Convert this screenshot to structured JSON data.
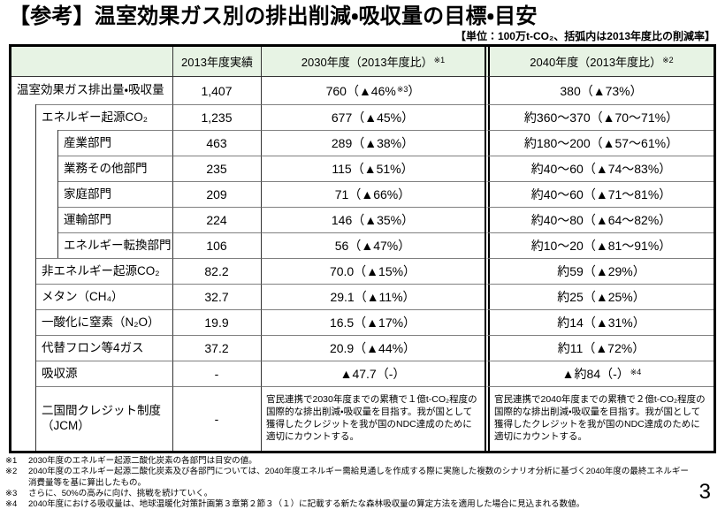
{
  "page": {
    "title": "【参考】温室効果ガス別の排出削減・吸収量の目標・目安",
    "unit_note": "【単位：100万t-CO₂、括弧内は2013年度比の削減率】",
    "page_number": "3"
  },
  "colors": {
    "header_bg": "#e7f3e4",
    "border": "#000000",
    "grid_h": "#808080",
    "grid_v": "#333333"
  },
  "table": {
    "headers": {
      "item": "",
      "fy2013": "2013年度実績",
      "fy2030": {
        "pre": "2030年度（2013年度比）",
        "sup": "※1"
      },
      "fy2040": {
        "pre": "2040年度（2013年度比）",
        "sup": "※2"
      }
    },
    "rows": [
      {
        "label": "温室効果ガス排出量・吸収量",
        "level": 0,
        "fy2013": {
          "pre": "1,407"
        },
        "fy2030": {
          "pre": "760（▲46%",
          "sup": "※3",
          "tail": "）"
        },
        "fy2040": {
          "pre": "380（▲73%）"
        }
      },
      {
        "label": "エネルギー起源CO₂",
        "level": 1,
        "fy2013": {
          "pre": "1,235"
        },
        "fy2030": {
          "pre": "677（▲45%）"
        },
        "fy2040": {
          "pre": "約360～370（▲70～71%）"
        }
      },
      {
        "label": "産業部門",
        "level": 2,
        "fy2013": {
          "pre": "463"
        },
        "fy2030": {
          "pre": "289（▲38%）"
        },
        "fy2040": {
          "pre": "約180～200（▲57～61%）"
        }
      },
      {
        "label": "業務その他部門",
        "level": 2,
        "fy2013": {
          "pre": "235"
        },
        "fy2030": {
          "pre": "115（▲51%）"
        },
        "fy2040": {
          "pre": "約40～60（▲74～83%）"
        }
      },
      {
        "label": "家庭部門",
        "level": 2,
        "fy2013": {
          "pre": "209"
        },
        "fy2030": {
          "pre": "71（▲66%）"
        },
        "fy2040": {
          "pre": "約40～60（▲71～81%）"
        }
      },
      {
        "label": "運輸部門",
        "level": 2,
        "fy2013": {
          "pre": "224"
        },
        "fy2030": {
          "pre": "146（▲35%）"
        },
        "fy2040": {
          "pre": "約40～80（▲64～82%）"
        }
      },
      {
        "label": "エネルギー転換部門",
        "level": 2,
        "fy2013": {
          "pre": "106"
        },
        "fy2030": {
          "pre": "56（▲47%）"
        },
        "fy2040": {
          "pre": "約10～20（▲81～91%）"
        }
      },
      {
        "label": "非エネルギー起源CO₂",
        "level": 1,
        "fy2013": {
          "pre": "82.2"
        },
        "fy2030": {
          "pre": "70.0（▲15%）"
        },
        "fy2040": {
          "pre": "約59（▲29%）"
        }
      },
      {
        "label": "メタン（CH₄）",
        "level": 1,
        "fy2013": {
          "pre": "32.7"
        },
        "fy2030": {
          "pre": "29.1（▲11%）"
        },
        "fy2040": {
          "pre": "約25（▲25%）"
        }
      },
      {
        "label": "一酸化に窒素（N₂O）",
        "level": 1,
        "fy2013": {
          "pre": "19.9"
        },
        "fy2030": {
          "pre": "16.5（▲17%）"
        },
        "fy2040": {
          "pre": "約14（▲31%）"
        }
      },
      {
        "label": "代替フロン等4ガス",
        "level": 1,
        "fy2013": {
          "pre": "37.2"
        },
        "fy2030": {
          "pre": "20.9（▲44%）"
        },
        "fy2040": {
          "pre": "約11（▲72%）"
        }
      },
      {
        "label": "吸収源",
        "level": 1,
        "fy2013": {
          "pre": "-"
        },
        "fy2030": {
          "pre": "▲47.7（-）"
        },
        "fy2040": {
          "pre": "▲約84（-）",
          "sup": "※4"
        }
      },
      {
        "label": "二国間クレジット制度\n（JCM）",
        "level": 1,
        "paragraph": true,
        "fy2013": {
          "pre": "-"
        },
        "fy2030": {
          "pre": "官民連携で2030年度までの累積で１億t-CO₂程度の国際的な排出削減・吸収量を目指す。我が国として獲得したクレジットを我が国のNDC達成のために適切にカウントする。"
        },
        "fy2040": {
          "pre": "官民連携で2040年度までの累積で２億t-CO₂程度の国際的な排出削減・吸収量を目指す。我が国として獲得したクレジットを我が国のNDC達成のために適切にカウントする。"
        }
      }
    ]
  },
  "footnotes": [
    {
      "mark": "※1",
      "text": "2030年度のエネルギー起源二酸化炭素の各部門は目安の値。"
    },
    {
      "mark": "※2",
      "text": "2040年度のエネルギー起源二酸化炭素及び各部門については、2040年度エネルギー需給見通しを作成する際に実施した複数のシナリオ分析に基づく2040年度の最終エネルギー消費量等を基に算出したもの。"
    },
    {
      "mark": "※3",
      "text": "さらに、50%の高みに向け、挑戦を続けていく。"
    },
    {
      "mark": "※4",
      "text": "2040年度における吸収量は、地球温暖化対策計画第３章第２節３（１）に記載する新たな森林吸収量の算定方法を適用した場合に見込まれる数値。"
    }
  ]
}
